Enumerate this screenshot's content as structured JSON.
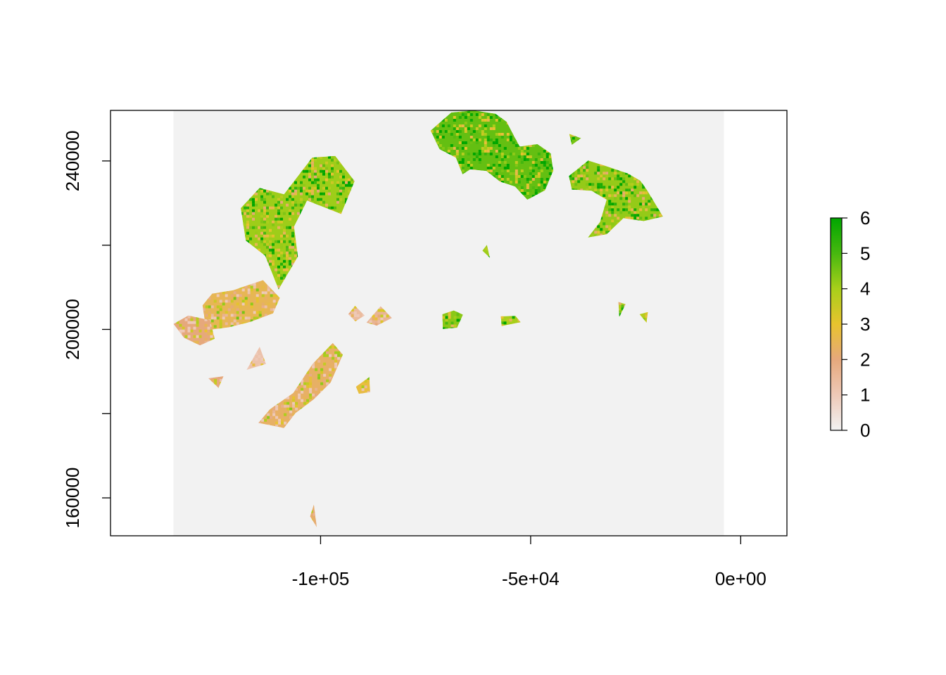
{
  "chart_data": {
    "type": "heatmap",
    "title": "",
    "xlabel": "",
    "ylabel": "",
    "xlim": [
      -150000,
      11000
    ],
    "ylim": [
      151000,
      252000
    ],
    "raster_extent": {
      "x": [
        -135000,
        -4000
      ],
      "y": [
        151000,
        252000
      ]
    },
    "background_value": 0,
    "x_ticks": [
      {
        "value": -100000,
        "label": "-1e+05"
      },
      {
        "value": -50000,
        "label": "-5e+04"
      },
      {
        "value": 0,
        "label": "0e+00"
      }
    ],
    "y_ticks": [
      {
        "value": 160000,
        "label": "160000"
      },
      {
        "value": 180000,
        "label": ""
      },
      {
        "value": 200000,
        "label": "200000"
      },
      {
        "value": 220000,
        "label": ""
      },
      {
        "value": 240000,
        "label": "240000"
      }
    ],
    "legend": {
      "position": "right",
      "min": 0,
      "max": 6,
      "labels": [
        "0",
        "1",
        "2",
        "3",
        "4",
        "5",
        "6"
      ],
      "colors": [
        "#f2f2f2",
        "#eec9b7",
        "#e6a87c",
        "#e8c32e",
        "#a8cf1a",
        "#47b80f",
        "#00a600"
      ]
    },
    "patches": [
      {
        "id": "north-central-large",
        "value": 4.7,
        "points": [
          [
            -68900,
            251500
          ],
          [
            -63600,
            252000
          ],
          [
            -58400,
            251200
          ],
          [
            -55700,
            249300
          ],
          [
            -53900,
            245800
          ],
          [
            -52600,
            243400
          ],
          [
            -48400,
            244000
          ],
          [
            -45200,
            241800
          ],
          [
            -44600,
            237700
          ],
          [
            -46600,
            233000
          ],
          [
            -50800,
            230800
          ],
          [
            -53700,
            233900
          ],
          [
            -57300,
            235100
          ],
          [
            -60500,
            237600
          ],
          [
            -64400,
            238000
          ],
          [
            -66200,
            236800
          ],
          [
            -67800,
            240800
          ],
          [
            -71700,
            242800
          ],
          [
            -73800,
            247200
          ]
        ]
      },
      {
        "id": "north-east-arc",
        "value": 4.2,
        "points": [
          [
            -40900,
            236400
          ],
          [
            -36300,
            240100
          ],
          [
            -31500,
            238600
          ],
          [
            -26800,
            237000
          ],
          [
            -23900,
            235300
          ],
          [
            -22300,
            233100
          ],
          [
            -18500,
            226800
          ],
          [
            -23100,
            225700
          ],
          [
            -27900,
            226400
          ],
          [
            -31900,
            222600
          ],
          [
            -36400,
            221800
          ],
          [
            -33500,
            225500
          ],
          [
            -31900,
            230800
          ],
          [
            -35500,
            232900
          ],
          [
            -40200,
            233200
          ]
        ]
      },
      {
        "id": "ne-islet-a",
        "value": 4.5,
        "points": [
          [
            -40800,
            246400
          ],
          [
            -38000,
            245400
          ],
          [
            -40200,
            243800
          ]
        ]
      },
      {
        "id": "northwest-ridge",
        "value": 4.1,
        "points": [
          [
            -102000,
            240800
          ],
          [
            -96500,
            241200
          ],
          [
            -91900,
            235200
          ],
          [
            -95100,
            227400
          ],
          [
            -103200,
            230600
          ],
          [
            -106300,
            224400
          ],
          [
            -105400,
            217300
          ],
          [
            -110000,
            209500
          ],
          [
            -113200,
            217500
          ],
          [
            -117800,
            221100
          ],
          [
            -119000,
            228800
          ],
          [
            -114500,
            233600
          ],
          [
            -108700,
            232100
          ]
        ]
      },
      {
        "id": "west-block",
        "value": 2.5,
        "points": [
          [
            -125800,
            208500
          ],
          [
            -120800,
            209300
          ],
          [
            -113700,
            211700
          ],
          [
            -109700,
            207500
          ],
          [
            -111300,
            203800
          ],
          [
            -116700,
            201800
          ],
          [
            -121800,
            200500
          ],
          [
            -127200,
            199800
          ],
          [
            -128100,
            205700
          ]
        ]
      },
      {
        "id": "west-fringe",
        "value": 2.0,
        "points": [
          [
            -131500,
            203300
          ],
          [
            -126300,
            202200
          ],
          [
            -125200,
            197800
          ],
          [
            -128700,
            196200
          ],
          [
            -132500,
            198000
          ],
          [
            -135000,
            201300
          ]
        ]
      },
      {
        "id": "southwest-ridge",
        "value": 2.3,
        "points": [
          [
            -101900,
            191800
          ],
          [
            -97100,
            196800
          ],
          [
            -94700,
            194000
          ],
          [
            -97600,
            187400
          ],
          [
            -101600,
            183400
          ],
          [
            -106000,
            180100
          ],
          [
            -108700,
            176600
          ],
          [
            -114800,
            177800
          ],
          [
            -112100,
            181000
          ],
          [
            -106500,
            184900
          ]
        ]
      },
      {
        "id": "west-islet-a",
        "value": 1.2,
        "points": [
          [
            -114500,
            195900
          ],
          [
            -117600,
            190400
          ],
          [
            -113000,
            191800
          ]
        ]
      },
      {
        "id": "west-islet-b",
        "value": 2.0,
        "points": [
          [
            -126700,
            188400
          ],
          [
            -123100,
            188900
          ],
          [
            -124300,
            186100
          ]
        ]
      },
      {
        "id": "mid-islet-1",
        "value": 1.4,
        "points": [
          [
            -91800,
            205600
          ],
          [
            -89500,
            203300
          ],
          [
            -91700,
            201900
          ],
          [
            -93400,
            203600
          ]
        ]
      },
      {
        "id": "mid-islet-2",
        "value": 1.6,
        "points": [
          [
            -85700,
            205500
          ],
          [
            -83000,
            202700
          ],
          [
            -86600,
            200900
          ],
          [
            -89100,
            201600
          ]
        ]
      },
      {
        "id": "mid-islet-3",
        "value": 4.3,
        "points": [
          [
            -71000,
            203600
          ],
          [
            -68300,
            204500
          ],
          [
            -66100,
            203500
          ],
          [
            -67500,
            200400
          ],
          [
            -70900,
            200100
          ]
        ]
      },
      {
        "id": "mid-islet-4",
        "value": 4.0,
        "points": [
          [
            -57100,
            203100
          ],
          [
            -53600,
            203200
          ],
          [
            -52400,
            201700
          ],
          [
            -56900,
            200800
          ]
        ]
      },
      {
        "id": "mid-islet-5",
        "value": 2.8,
        "points": [
          [
            -91600,
            186400
          ],
          [
            -88400,
            188700
          ],
          [
            -88200,
            185100
          ],
          [
            -90900,
            184700
          ]
        ]
      },
      {
        "id": "mid-islet-6",
        "value": 4.1,
        "points": [
          [
            -61500,
            218700
          ],
          [
            -59700,
            217000
          ],
          [
            -60400,
            220100
          ]
        ]
      },
      {
        "id": "mid-islet-7",
        "value": 3.8,
        "points": [
          [
            -29100,
            206500
          ],
          [
            -27400,
            206000
          ],
          [
            -28900,
            202900
          ]
        ]
      },
      {
        "id": "mid-islet-8",
        "value": 3.8,
        "points": [
          [
            -24100,
            203600
          ],
          [
            -22400,
            201600
          ],
          [
            -22100,
            204100
          ]
        ]
      },
      {
        "id": "south-islet",
        "value": 2.2,
        "points": [
          [
            -102500,
            155600
          ],
          [
            -101600,
            158400
          ],
          [
            -100900,
            153000
          ]
        ]
      }
    ]
  }
}
